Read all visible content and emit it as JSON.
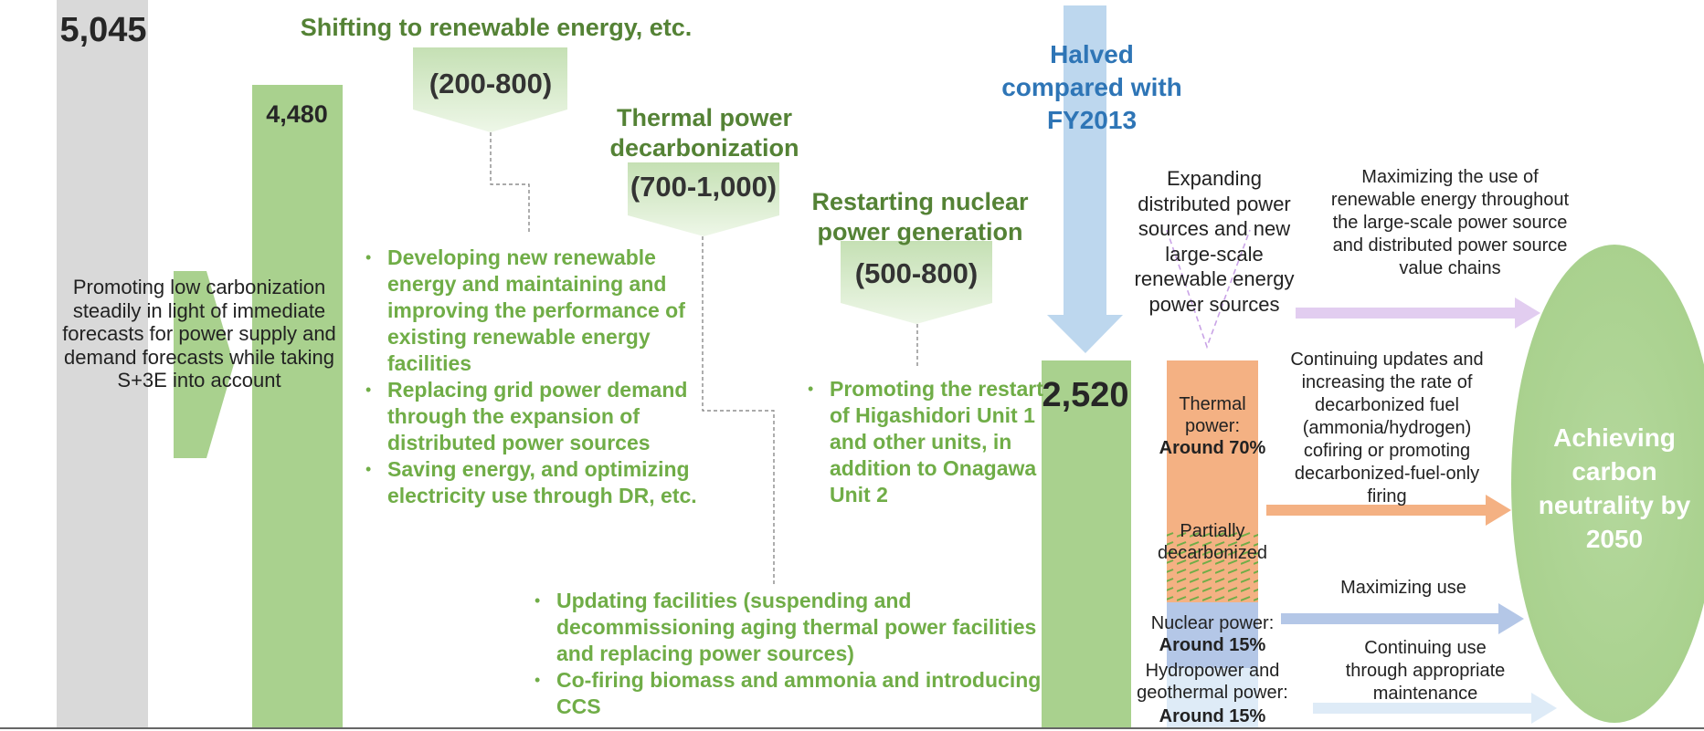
{
  "bars": [
    {
      "label": "5,045"
    },
    {
      "label": "4,480"
    },
    {
      "label": "2,520"
    }
  ],
  "left_arrow": {
    "text": "Promoting low carbonization steadily in light of immediate forecasts for power supply and demand forecasts while taking S+3E into account"
  },
  "measures": [
    {
      "title": "Shifting to renewable energy, etc.",
      "range": "(200-800)",
      "bullets": [
        "Developing new renewable energy and maintaining and improving the performance of existing renewable energy facilities",
        "Replacing grid power demand through the expansion of distributed power sources",
        "Saving energy, and optimizing electricity use through DR, etc."
      ]
    },
    {
      "title": "Thermal power decarbonization",
      "range": "(700-1,000)",
      "bullets": [
        "Updating facilities (suspending and decommissioning aging thermal power facilities and replacing power sources)",
        "Co-firing biomass and ammonia and introducing CCS"
      ]
    },
    {
      "title": "Restarting nuclear power generation",
      "range": "(500-800)",
      "bullets": [
        "Promoting the restart of Higashidori Unit 1 and other units, in addition to Onagawa Unit 2"
      ]
    }
  ],
  "halved": "Halved compared with FY2013",
  "mix": [
    {
      "label": "Thermal power:",
      "share": "Around 70%"
    },
    {
      "label": "Partially decarbonized"
    },
    {
      "label": "Nuclear power:",
      "share": "Around 15%"
    },
    {
      "label": "Hydropower and geothermal power:",
      "share": "Around 15%"
    }
  ],
  "top_note": "Expanding distributed power sources and new large-scale renewable energy power sources",
  "paths": [
    "Maximizing the use of renewable energy throughout the large-scale power source and distributed power source value chains",
    "Continuing updates and increasing the rate of decarbonized fuel (ammonia/hydrogen) cofiring or promoting decarbonized-fuel-only firing",
    "Maximizing use",
    "Continuing use through appropriate maintenance"
  ],
  "goal": "Achieving carbon neutrality by 2050"
}
